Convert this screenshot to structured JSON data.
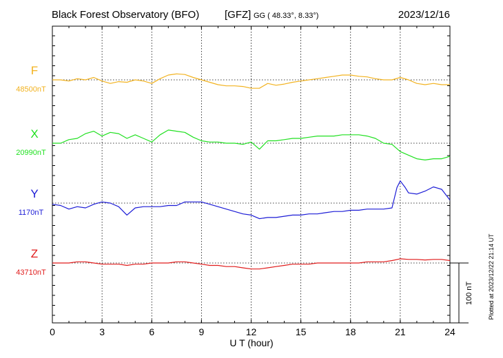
{
  "header": {
    "title": "Black Forest Observatory (BFO)",
    "agency": "[GFZ]",
    "coords": "GG ( 48.33°,   8.33°)",
    "date": "2023/12/16"
  },
  "side_note": "Plotted at 2023/12/22 21:14 UT",
  "chart_data": {
    "type": "line",
    "xlabel": "U T (hour)",
    "xlim": [
      0,
      24
    ],
    "xticks": [
      "0",
      "3",
      "6",
      "9",
      "12",
      "15",
      "18",
      "21",
      "24"
    ],
    "scale_label": "100 nT",
    "scale_nT": 100,
    "grid": true,
    "series": [
      {
        "name": "F",
        "baseline_label": "48500nT",
        "baseline_nT": 48500,
        "color": "#f2b21e",
        "points": [
          [
            0,
            48500
          ],
          [
            0.5,
            48500
          ],
          [
            1,
            48498
          ],
          [
            1.5,
            48502
          ],
          [
            2,
            48500
          ],
          [
            2.5,
            48504
          ],
          [
            3,
            48498
          ],
          [
            3.5,
            48494
          ],
          [
            4,
            48497
          ],
          [
            4.5,
            48496
          ],
          [
            5,
            48500
          ],
          [
            5.5,
            48498
          ],
          [
            6,
            48494
          ],
          [
            6.5,
            48502
          ],
          [
            7,
            48508
          ],
          [
            7.5,
            48510
          ],
          [
            8,
            48509
          ],
          [
            8.5,
            48504
          ],
          [
            9,
            48500
          ],
          [
            9.5,
            48496
          ],
          [
            10,
            48492
          ],
          [
            10.5,
            48490
          ],
          [
            11,
            48490
          ],
          [
            11.5,
            48489
          ],
          [
            12,
            48486
          ],
          [
            12.5,
            48486
          ],
          [
            13,
            48494
          ],
          [
            13.5,
            48491
          ],
          [
            14,
            48493
          ],
          [
            14.5,
            48496
          ],
          [
            15,
            48498
          ],
          [
            15.5,
            48500
          ],
          [
            16,
            48502
          ],
          [
            16.5,
            48504
          ],
          [
            17,
            48506
          ],
          [
            17.5,
            48508
          ],
          [
            18,
            48508
          ],
          [
            18.5,
            48506
          ],
          [
            19,
            48505
          ],
          [
            19.5,
            48502
          ],
          [
            20,
            48500
          ],
          [
            20.5,
            48500
          ],
          [
            21,
            48504
          ],
          [
            21.5,
            48500
          ],
          [
            22,
            48494
          ],
          [
            22.5,
            48492
          ],
          [
            23,
            48494
          ],
          [
            23.5,
            48492
          ],
          [
            24,
            48492
          ]
        ]
      },
      {
        "name": "X",
        "baseline_label": "20990nT",
        "baseline_nT": 20990,
        "color": "#1fe01f",
        "points": [
          [
            0,
            20990
          ],
          [
            0.5,
            20990
          ],
          [
            1,
            20996
          ],
          [
            1.5,
            20998
          ],
          [
            2,
            21006
          ],
          [
            2.5,
            21010
          ],
          [
            3,
            21002
          ],
          [
            3.5,
            21008
          ],
          [
            4,
            21006
          ],
          [
            4.5,
            20998
          ],
          [
            5,
            21004
          ],
          [
            5.5,
            20998
          ],
          [
            6,
            20992
          ],
          [
            6.5,
            21004
          ],
          [
            7,
            21012
          ],
          [
            7.5,
            21010
          ],
          [
            8,
            21008
          ],
          [
            8.5,
            21000
          ],
          [
            9,
            20994
          ],
          [
            9.5,
            20992
          ],
          [
            10,
            20992
          ],
          [
            10.5,
            20990
          ],
          [
            11,
            20990
          ],
          [
            11.5,
            20988
          ],
          [
            12,
            20992
          ],
          [
            12.5,
            20980
          ],
          [
            13,
            20994
          ],
          [
            13.5,
            20994
          ],
          [
            14,
            20996
          ],
          [
            14.5,
            20998
          ],
          [
            15,
            20998
          ],
          [
            15.5,
            21000
          ],
          [
            16,
            21002
          ],
          [
            16.5,
            21002
          ],
          [
            17,
            21002
          ],
          [
            17.5,
            21004
          ],
          [
            18,
            21004
          ],
          [
            18.5,
            21004
          ],
          [
            19,
            21002
          ],
          [
            19.5,
            20998
          ],
          [
            20,
            20990
          ],
          [
            20.5,
            20988
          ],
          [
            21,
            20976
          ],
          [
            21.5,
            20970
          ],
          [
            22,
            20964
          ],
          [
            22.5,
            20962
          ],
          [
            23,
            20964
          ],
          [
            23.5,
            20964
          ],
          [
            24,
            20968
          ]
        ]
      },
      {
        "name": "Y",
        "baseline_label": "1170nT",
        "baseline_nT": 1170,
        "color": "#1a1ad6",
        "points": [
          [
            0,
            1168
          ],
          [
            0.5,
            1166
          ],
          [
            1,
            1160
          ],
          [
            1.5,
            1164
          ],
          [
            2,
            1162
          ],
          [
            2.5,
            1168
          ],
          [
            3,
            1172
          ],
          [
            3.5,
            1170
          ],
          [
            4,
            1164
          ],
          [
            4.5,
            1150
          ],
          [
            5,
            1162
          ],
          [
            5.5,
            1164
          ],
          [
            6,
            1164
          ],
          [
            6.5,
            1164
          ],
          [
            7,
            1166
          ],
          [
            7.5,
            1166
          ],
          [
            8,
            1172
          ],
          [
            8.5,
            1172
          ],
          [
            9,
            1172
          ],
          [
            9.5,
            1168
          ],
          [
            10,
            1164
          ],
          [
            10.5,
            1160
          ],
          [
            11,
            1156
          ],
          [
            11.5,
            1152
          ],
          [
            12,
            1150
          ],
          [
            12.5,
            1144
          ],
          [
            13,
            1146
          ],
          [
            13.5,
            1146
          ],
          [
            14,
            1148
          ],
          [
            14.5,
            1150
          ],
          [
            15,
            1150
          ],
          [
            15.5,
            1152
          ],
          [
            16,
            1152
          ],
          [
            16.5,
            1154
          ],
          [
            17,
            1156
          ],
          [
            17.5,
            1156
          ],
          [
            18,
            1158
          ],
          [
            18.5,
            1158
          ],
          [
            19,
            1160
          ],
          [
            19.5,
            1160
          ],
          [
            20,
            1160
          ],
          [
            20.5,
            1162
          ],
          [
            20.8,
            1196
          ],
          [
            21,
            1207
          ],
          [
            21.3,
            1196
          ],
          [
            21.5,
            1187
          ],
          [
            22,
            1185
          ],
          [
            22.5,
            1190
          ],
          [
            23,
            1197
          ],
          [
            23.5,
            1193
          ],
          [
            24,
            1175
          ]
        ]
      },
      {
        "name": "Z",
        "baseline_label": "43710nT",
        "baseline_nT": 43710,
        "color": "#e01a1a",
        "points": [
          [
            0,
            43710
          ],
          [
            0.5,
            43710
          ],
          [
            1,
            43710
          ],
          [
            1.5,
            43712
          ],
          [
            2,
            43712
          ],
          [
            2.5,
            43710
          ],
          [
            3,
            43708
          ],
          [
            3.5,
            43708
          ],
          [
            4,
            43708
          ],
          [
            4.5,
            43706
          ],
          [
            5,
            43708
          ],
          [
            5.5,
            43708
          ],
          [
            6,
            43710
          ],
          [
            6.5,
            43710
          ],
          [
            7,
            43710
          ],
          [
            7.5,
            43712
          ],
          [
            8,
            43712
          ],
          [
            8.5,
            43710
          ],
          [
            9,
            43708
          ],
          [
            9.5,
            43706
          ],
          [
            10,
            43706
          ],
          [
            10.5,
            43704
          ],
          [
            11,
            43704
          ],
          [
            11.5,
            43702
          ],
          [
            12,
            43700
          ],
          [
            12.5,
            43700
          ],
          [
            13,
            43702
          ],
          [
            13.5,
            43704
          ],
          [
            14,
            43706
          ],
          [
            14.5,
            43708
          ],
          [
            15,
            43708
          ],
          [
            15.5,
            43708
          ],
          [
            16,
            43710
          ],
          [
            16.5,
            43710
          ],
          [
            17,
            43710
          ],
          [
            17.5,
            43710
          ],
          [
            18,
            43710
          ],
          [
            18.5,
            43710
          ],
          [
            19,
            43712
          ],
          [
            19.5,
            43712
          ],
          [
            20,
            43712
          ],
          [
            20.5,
            43714
          ],
          [
            21,
            43717
          ],
          [
            21.5,
            43716
          ],
          [
            22,
            43716
          ],
          [
            22.5,
            43715
          ],
          [
            23,
            43716
          ],
          [
            23.5,
            43716
          ],
          [
            24,
            43714
          ]
        ]
      }
    ]
  }
}
